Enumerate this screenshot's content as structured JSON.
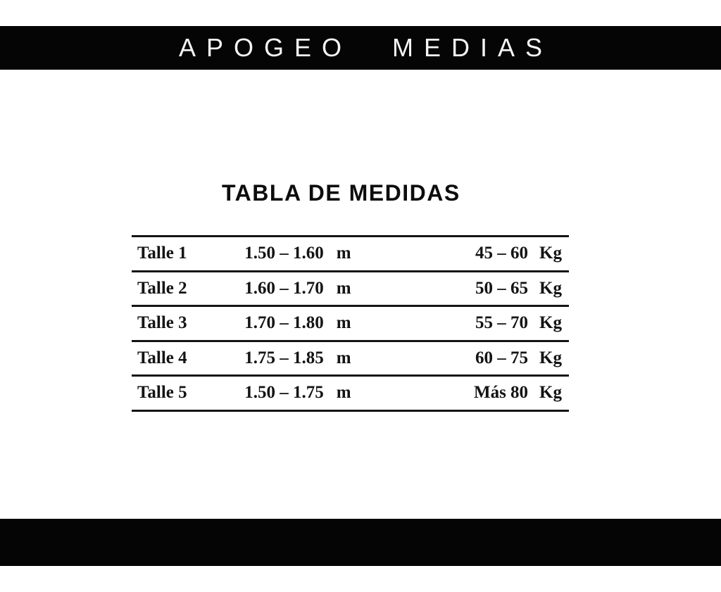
{
  "header": {
    "brand_word_1": "APOGEO",
    "brand_word_2": "MEDIAS"
  },
  "main": {
    "title": "TABLA DE MEDIDAS",
    "table": {
      "rows": [
        {
          "size": "Talle 1",
          "height": "1.50 – 1.60",
          "height_unit": "m",
          "weight": "45 – 60",
          "weight_unit": "Kg"
        },
        {
          "size": "Talle 2",
          "height": "1.60 – 1.70",
          "height_unit": "m",
          "weight": "50 – 65",
          "weight_unit": "Kg"
        },
        {
          "size": "Talle 3",
          "height": "1.70 – 1.80",
          "height_unit": "m",
          "weight": "55 – 70",
          "weight_unit": "Kg"
        },
        {
          "size": "Talle 4",
          "height": "1.75 – 1.85",
          "height_unit": "m",
          "weight": "60 – 75",
          "weight_unit": "Kg"
        },
        {
          "size": "Talle 5",
          "height": "1.50 – 1.75",
          "height_unit": "m",
          "weight": "Más 80",
          "weight_unit": "Kg"
        }
      ]
    }
  },
  "colors": {
    "bar_background": "#050505",
    "brand_text": "#f5f5f5",
    "title_text": "#0d0d0d",
    "table_text": "#141414",
    "page_background": "#ffffff"
  }
}
